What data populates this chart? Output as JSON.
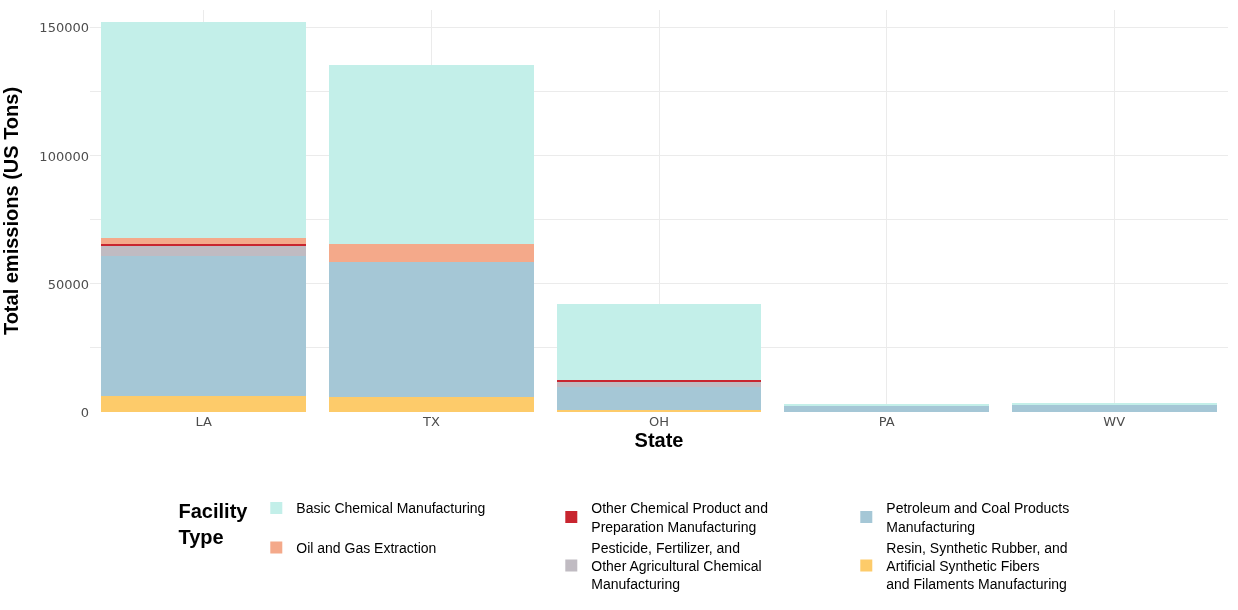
{
  "chart_data": {
    "type": "bar",
    "stacked": true,
    "xlabel": "State",
    "ylabel": "Total emissions (US Tons)",
    "legend_title": "Facility Type",
    "legend": "bottom",
    "grid": true,
    "categories": [
      "LA",
      "TX",
      "OH",
      "PA",
      "WV"
    ],
    "ylim": [
      0,
      157000
    ],
    "yticks": [
      0,
      {
        "value": 25000,
        "label": null
      },
      50000,
      {
        "value": 75000,
        "label": null
      },
      100000,
      {
        "value": 125000,
        "label": null
      },
      150000
    ],
    "series": [
      {
        "name": "Resin, Synthetic Rubber, and Artificial Synthetic Fibers and Filaments Manufacturing",
        "color": "#fdcb6a",
        "values": [
          6200,
          5900,
          600,
          null,
          null
        ]
      },
      {
        "name": "Petroleum and Coal Products Manufacturing",
        "color": "#a5c7d6",
        "values": [
          54800,
          52500,
          9000,
          2600,
          2800
        ]
      },
      {
        "name": "Pesticide, Fertilizer, and Other Agricultural Chemical Manufacturing",
        "color": "#c0bbc2",
        "values": [
          4200,
          null,
          2000,
          null,
          null
        ]
      },
      {
        "name": "Other Chemical Product and Preparation Manufacturing",
        "color": "#c8252f",
        "values": [
          600,
          null,
          900,
          null,
          null
        ]
      },
      {
        "name": "Oil and Gas Extraction",
        "color": "#f4a98a",
        "values": [
          2200,
          7300,
          null,
          null,
          null
        ]
      },
      {
        "name": "Basic Chemical Manufacturing",
        "color": "#c3efe9",
        "values": [
          84300,
          70000,
          29600,
          400,
          400
        ]
      }
    ]
  }
}
